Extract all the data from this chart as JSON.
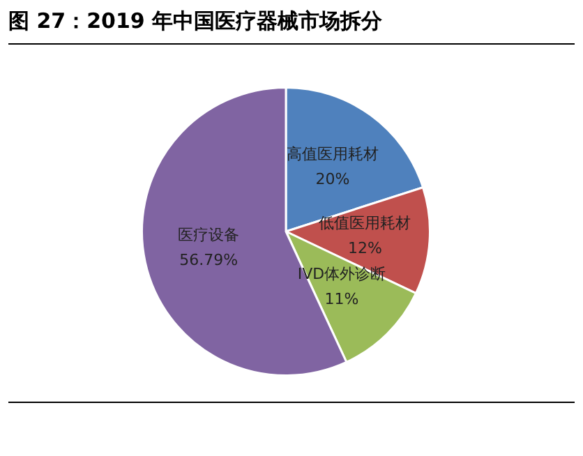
{
  "chart_data": {
    "type": "pie",
    "title": "图 27：2019 年中国医疗器械市场拆分",
    "categories": [
      "高值医用耗材",
      "低值医用耗材",
      "IVD体外诊断",
      "医疗设备"
    ],
    "values": [
      20,
      12,
      11,
      56.79
    ],
    "value_labels": [
      "20%",
      "12%",
      "11%",
      "56.79%"
    ],
    "colors": [
      "#4f81bd",
      "#c0504d",
      "#9bbb59",
      "#8064a2"
    ],
    "legend": false
  }
}
